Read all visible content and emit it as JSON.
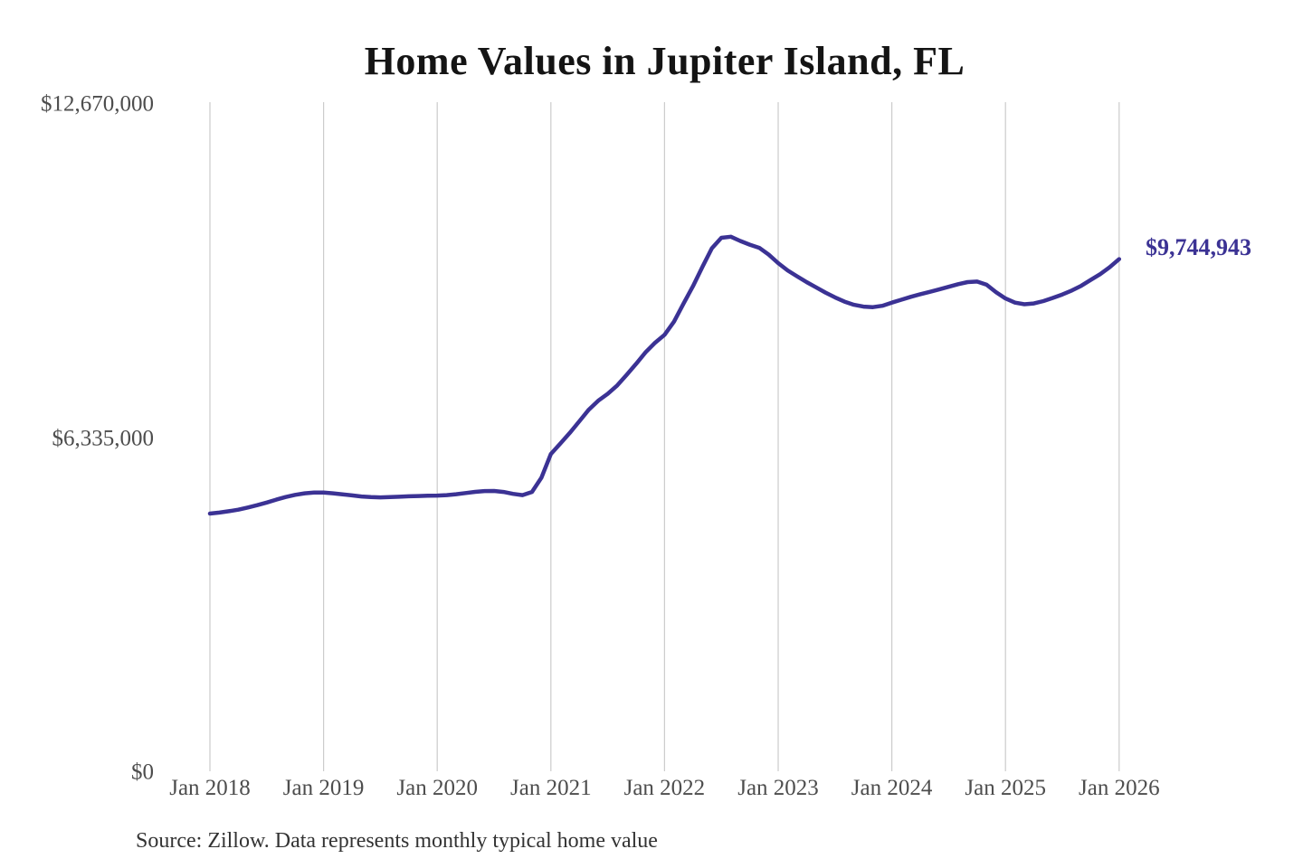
{
  "chart": {
    "title": "Home Values in Jupiter Island, FL",
    "source": "Source: Zillow. Data represents monthly typical home value",
    "colors": {
      "line": "#3b3294",
      "grid": "#cccccc",
      "axis_text": "#4d4d4d",
      "title_text": "#141414",
      "source_text": "#333333",
      "background": "#ffffff"
    }
  },
  "chart_data": {
    "type": "line",
    "title": "Home Values in Jupiter Island, FL",
    "xlabel": "",
    "ylabel": "",
    "ylim": [
      0,
      12670000
    ],
    "grid": "vertical-only",
    "legend": "none",
    "y_ticks": [
      {
        "value": 0,
        "label": "$0"
      },
      {
        "value": 6335000,
        "label": "$6,335,000"
      },
      {
        "value": 12670000,
        "label": "$12,670,000"
      }
    ],
    "x_ticks": [
      "Jan 2018",
      "Jan 2019",
      "Jan 2020",
      "Jan 2021",
      "Jan 2022",
      "Jan 2023",
      "Jan 2024",
      "Jan 2025",
      "Jan 2026"
    ],
    "series": [
      {
        "name": "Monthly typical home value",
        "dates": [
          "2018-01",
          "2018-02",
          "2018-03",
          "2018-04",
          "2018-05",
          "2018-06",
          "2018-07",
          "2018-08",
          "2018-09",
          "2018-10",
          "2018-11",
          "2018-12",
          "2019-01",
          "2019-02",
          "2019-03",
          "2019-04",
          "2019-05",
          "2019-06",
          "2019-07",
          "2019-08",
          "2019-09",
          "2019-10",
          "2019-11",
          "2019-12",
          "2020-01",
          "2020-02",
          "2020-03",
          "2020-04",
          "2020-05",
          "2020-06",
          "2020-07",
          "2020-08",
          "2020-09",
          "2020-10",
          "2020-11",
          "2020-12",
          "2021-01",
          "2021-02",
          "2021-03",
          "2021-04",
          "2021-05",
          "2021-06",
          "2021-07",
          "2021-08",
          "2021-09",
          "2021-10",
          "2021-11",
          "2021-12",
          "2022-01",
          "2022-02",
          "2022-03",
          "2022-04",
          "2022-05",
          "2022-06",
          "2022-07",
          "2022-08",
          "2022-09",
          "2022-10",
          "2022-11",
          "2022-12",
          "2023-01",
          "2023-02",
          "2023-03",
          "2023-04",
          "2023-05",
          "2023-06",
          "2023-07",
          "2023-08",
          "2023-09",
          "2023-10",
          "2023-11",
          "2023-12",
          "2024-01",
          "2024-02",
          "2024-03",
          "2024-04",
          "2024-05",
          "2024-06",
          "2024-07",
          "2024-08",
          "2024-09",
          "2024-10",
          "2024-11",
          "2024-12",
          "2025-01",
          "2025-02",
          "2025-03",
          "2025-04",
          "2025-05",
          "2025-06",
          "2025-07",
          "2025-08",
          "2025-09",
          "2025-10",
          "2025-11",
          "2025-12",
          "2026-01"
        ],
        "values": [
          4920000,
          4940000,
          4965000,
          4995000,
          5035000,
          5080000,
          5130000,
          5185000,
          5235000,
          5275000,
          5305000,
          5320000,
          5320000,
          5305000,
          5285000,
          5265000,
          5245000,
          5232000,
          5228000,
          5232000,
          5240000,
          5248000,
          5254000,
          5258000,
          5262000,
          5270000,
          5288000,
          5310000,
          5332000,
          5348000,
          5350000,
          5330000,
          5295000,
          5270000,
          5330000,
          5600000,
          6050000,
          6250000,
          6450000,
          6670000,
          6890000,
          7060000,
          7190000,
          7350000,
          7550000,
          7760000,
          7980000,
          8160000,
          8310000,
          8560000,
          8900000,
          9230000,
          9600000,
          9950000,
          10150000,
          10170000,
          10090000,
          10020000,
          9960000,
          9830000,
          9670000,
          9530000,
          9420000,
          9310000,
          9210000,
          9110000,
          9020000,
          8940000,
          8880000,
          8845000,
          8835000,
          8860000,
          8920000,
          8975000,
          9030000,
          9080000,
          9125000,
          9170000,
          9220000,
          9270000,
          9310000,
          9320000,
          9260000,
          9120000,
          9000000,
          8920000,
          8890000,
          8905000,
          8950000,
          9010000,
          9075000,
          9150000,
          9240000,
          9350000,
          9460000,
          9590000,
          9744943
        ]
      }
    ],
    "last_point": {
      "date": "2026-01",
      "value": 9744943,
      "label": "$9,744,943"
    }
  }
}
